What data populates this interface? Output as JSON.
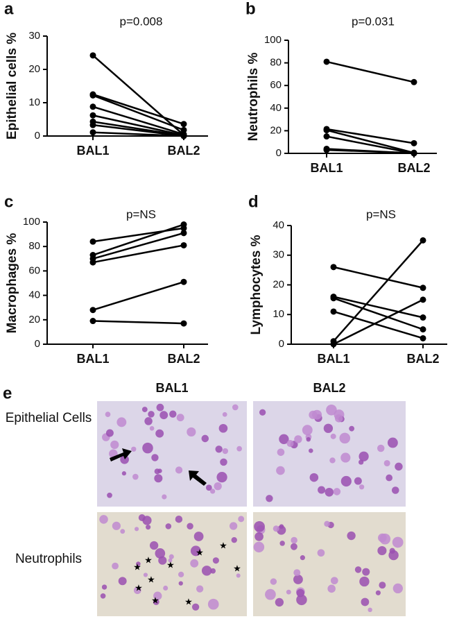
{
  "chart_data": [
    {
      "type": "line",
      "panel_label": "a",
      "title": "p=0.008",
      "y_label": "Epithelial cells %",
      "categories": [
        "BAL1",
        "BAL2"
      ],
      "series": [
        {
          "color": "#000000",
          "values": [
            24.2,
            0.3
          ]
        },
        {
          "color": "#000000",
          "values": [
            12.5,
            3.6
          ]
        },
        {
          "color": "#000000",
          "values": [
            12.2,
            1.8
          ]
        },
        {
          "color": "#000000",
          "values": [
            8.8,
            0.5
          ]
        },
        {
          "color": "#000000",
          "values": [
            6.2,
            0.2
          ]
        },
        {
          "color": "#000000",
          "values": [
            4.3,
            0.1
          ]
        },
        {
          "color": "#000000",
          "values": [
            3.3,
            0
          ]
        },
        {
          "color": "#000000",
          "values": [
            1.1,
            0
          ]
        }
      ],
      "ylim": [
        0,
        30
      ],
      "yticks": [
        0,
        10,
        20,
        30
      ]
    },
    {
      "type": "line",
      "panel_label": "b",
      "title": "p=0.031",
      "y_label": "Neutrophils %",
      "categories": [
        "BAL1",
        "BAL2"
      ],
      "series": [
        {
          "color": "#000000",
          "values": [
            81,
            63
          ]
        },
        {
          "color": "#000000",
          "values": [
            21.5,
            9
          ]
        },
        {
          "color": "#000000",
          "values": [
            20.5,
            0.5
          ]
        },
        {
          "color": "#000000",
          "values": [
            15,
            0
          ]
        },
        {
          "color": "#000000",
          "values": [
            4,
            0
          ]
        },
        {
          "color": "#000000",
          "values": [
            3,
            0.3
          ]
        }
      ],
      "ylim": [
        0,
        100
      ],
      "yticks": [
        0,
        20,
        40,
        60,
        80,
        100
      ]
    },
    {
      "type": "line",
      "panel_label": "c",
      "title": "p=NS",
      "y_label": "Macrophages %",
      "categories": [
        "BAL1",
        "BAL2"
      ],
      "series": [
        {
          "color": "#000000",
          "values": [
            84,
            95
          ]
        },
        {
          "color": "#000000",
          "values": [
            73,
            98
          ]
        },
        {
          "color": "#000000",
          "values": [
            70,
            91
          ]
        },
        {
          "color": "#000000",
          "values": [
            67,
            81
          ]
        },
        {
          "color": "#000000",
          "values": [
            28,
            51
          ]
        },
        {
          "color": "#000000",
          "values": [
            19,
            17
          ]
        }
      ],
      "ylim": [
        0,
        100
      ],
      "yticks": [
        0,
        20,
        40,
        60,
        80,
        100
      ]
    },
    {
      "type": "line",
      "panel_label": "d",
      "title": "p=NS",
      "y_label": "Lymphocytes %",
      "categories": [
        "BAL1",
        "BAL2"
      ],
      "series": [
        {
          "color": "#000000",
          "values": [
            26,
            19
          ]
        },
        {
          "color": "#000000",
          "values": [
            16,
            9
          ]
        },
        {
          "color": "#000000",
          "values": [
            15.5,
            5
          ]
        },
        {
          "color": "#000000",
          "values": [
            11,
            2
          ]
        },
        {
          "color": "#000000",
          "values": [
            1,
            35
          ]
        },
        {
          "color": "#000000",
          "values": [
            0,
            15
          ]
        }
      ],
      "ylim": [
        0,
        40
      ],
      "yticks": [
        0,
        10,
        20,
        30,
        40
      ]
    }
  ],
  "micrograph_panel": {
    "panel_label": "e",
    "columns": [
      "BAL1",
      "BAL2"
    ],
    "rows": [
      "Epithelial Cells",
      "Neutrophils"
    ]
  }
}
